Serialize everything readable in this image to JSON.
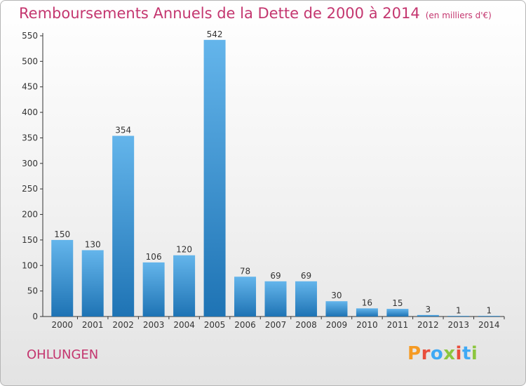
{
  "header": {
    "title": "Remboursements Annuels de la Dette de 2000 à 2014",
    "unit": "(en milliers d'€)"
  },
  "footer": {
    "commune": "OHLUNGEN",
    "logo_text": "Proxiti",
    "logo_colors": [
      "#f59a23",
      "#e94e3c",
      "#3fa9f5",
      "#8cc63f",
      "#e94e3c",
      "#3fa9f5",
      "#8cc63f"
    ]
  },
  "colors": {
    "title": "#c4366f",
    "bar_light": "#64b5eb",
    "bar_dark": "#1e73b4"
  },
  "chart_data": {
    "type": "bar",
    "categories": [
      "2000",
      "2001",
      "2002",
      "2003",
      "2004",
      "2005",
      "2006",
      "2007",
      "2008",
      "2009",
      "2010",
      "2011",
      "2012",
      "2013",
      "2014"
    ],
    "values": [
      150,
      130,
      354,
      106,
      120,
      542,
      78,
      69,
      69,
      30,
      16,
      15,
      3,
      1,
      1
    ],
    "ylim": [
      0,
      550
    ],
    "yticks": [
      0,
      50,
      100,
      150,
      200,
      250,
      300,
      350,
      400,
      450,
      500,
      550
    ],
    "grid": false,
    "data_labels": true
  }
}
